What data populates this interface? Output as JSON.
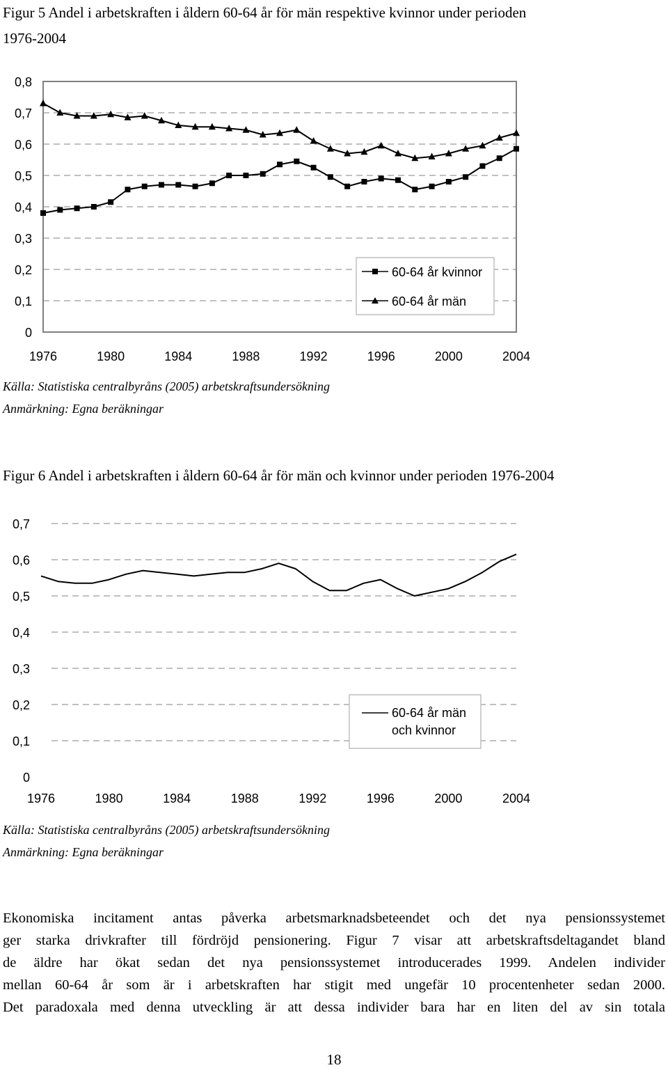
{
  "figure5": {
    "title_line1": "Figur 5 Andel i arbetskraften i åldern 60-64 år för män respektive kvinnor under perioden",
    "title_line2": "1976-2004",
    "source": "Källa: Statistiska centralbyråns (2005) arbetskraftsundersökning",
    "remark": "Anmärkning: Egna beräkningar"
  },
  "figure6": {
    "title": "Figur 6 Andel i arbetskraften i åldern 60-64 år för män och kvinnor under perioden 1976-2004",
    "source": "Källa: Statistiska centralbyråns (2005) arbetskraftsundersökning",
    "remark": "Anmärkning: Egna beräkningar"
  },
  "paragraph": {
    "lines": [
      "Ekonomiska incitament antas påverka arbetsmarknadsbeteendet och det nya pensionssystemet",
      "ger starka drivkrafter till fördröjd pensionering. Figur 7 visar att arbetskraftsdeltagandet bland",
      "de äldre har ökat sedan det nya pensionssystemet introducerades 1999. Andelen individer",
      "mellan 60-64 år som är i arbetskraften har stigit med ungefär 10 procentenheter sedan 2000.",
      "Det paradoxala med denna utveckling är att dessa individer bara har en liten del av sin totala"
    ]
  },
  "page_number": "18",
  "chart_data": [
    {
      "type": "line",
      "title": "",
      "xlabel": "",
      "ylabel": "",
      "x": [
        1976,
        1977,
        1978,
        1979,
        1980,
        1981,
        1982,
        1983,
        1984,
        1985,
        1986,
        1987,
        1988,
        1989,
        1990,
        1991,
        1992,
        1993,
        1994,
        1995,
        1996,
        1997,
        1998,
        1999,
        2000,
        2001,
        2002,
        2003,
        2004
      ],
      "xticks": [
        "1976",
        "1980",
        "1984",
        "1988",
        "1992",
        "1996",
        "2000",
        "2004"
      ],
      "yticks": [
        "0",
        "0,1",
        "0,2",
        "0,3",
        "0,4",
        "0,5",
        "0,6",
        "0,7",
        "0,8"
      ],
      "ylim": [
        0,
        0.8
      ],
      "grid": "dashed horizontal",
      "legend": "bottom-right",
      "series": [
        {
          "name": "60-64 år kvinnor",
          "marker": "square",
          "values": [
            0.38,
            0.39,
            0.395,
            0.4,
            0.415,
            0.455,
            0.465,
            0.47,
            0.47,
            0.465,
            0.475,
            0.5,
            0.5,
            0.505,
            0.535,
            0.545,
            0.525,
            0.495,
            0.465,
            0.48,
            0.49,
            0.485,
            0.455,
            0.465,
            0.48,
            0.495,
            0.53,
            0.555,
            0.585
          ]
        },
        {
          "name": "60-64 år män",
          "marker": "triangle",
          "values": [
            0.73,
            0.7,
            0.69,
            0.69,
            0.695,
            0.685,
            0.69,
            0.675,
            0.66,
            0.655,
            0.655,
            0.65,
            0.645,
            0.63,
            0.635,
            0.645,
            0.61,
            0.585,
            0.57,
            0.575,
            0.595,
            0.57,
            0.555,
            0.56,
            0.57,
            0.585,
            0.595,
            0.62,
            0.635
          ]
        }
      ]
    },
    {
      "type": "line",
      "title": "",
      "xlabel": "",
      "ylabel": "",
      "x": [
        1976,
        1977,
        1978,
        1979,
        1980,
        1981,
        1982,
        1983,
        1984,
        1985,
        1986,
        1987,
        1988,
        1989,
        1990,
        1991,
        1992,
        1993,
        1994,
        1995,
        1996,
        1997,
        1998,
        1999,
        2000,
        2001,
        2002,
        2003,
        2004
      ],
      "xticks": [
        "1976",
        "1980",
        "1984",
        "1988",
        "1992",
        "1996",
        "2000",
        "2004"
      ],
      "yticks": [
        "0",
        "0,1",
        "0,2",
        "0,3",
        "0,4",
        "0,5",
        "0,6",
        "0,7"
      ],
      "ylim": [
        0,
        0.7
      ],
      "grid": "dashed horizontal",
      "legend": "bottom-right",
      "series": [
        {
          "name_line1": "60-64 år män",
          "name_line2": "och kvinnor",
          "marker": "none",
          "values": [
            0.555,
            0.54,
            0.535,
            0.535,
            0.545,
            0.56,
            0.57,
            0.565,
            0.56,
            0.555,
            0.56,
            0.565,
            0.565,
            0.575,
            0.59,
            0.575,
            0.54,
            0.515,
            0.515,
            0.535,
            0.545,
            0.52,
            0.5,
            0.51,
            0.52,
            0.54,
            0.565,
            0.595,
            0.615
          ]
        }
      ]
    }
  ]
}
